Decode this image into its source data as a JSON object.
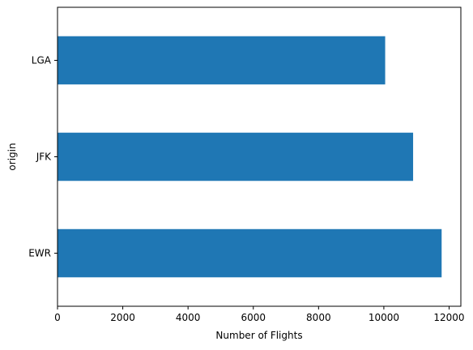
{
  "chart_data": {
    "type": "bar",
    "orientation": "horizontal",
    "categories": [
      "EWR",
      "JFK",
      "LGA"
    ],
    "values": [
      11771,
      10897,
      10041
    ],
    "xlabel": "Number of Flights",
    "ylabel": "origin",
    "xlim": [
      0,
      12360
    ],
    "xticks": [
      0,
      2000,
      4000,
      6000,
      8000,
      10000,
      12000
    ],
    "xtick_labels": [
      "0",
      "2000",
      "4000",
      "6000",
      "8000",
      "10000",
      "12000"
    ],
    "grid": false,
    "legend": "none",
    "bar_color": "#1f77b4"
  }
}
